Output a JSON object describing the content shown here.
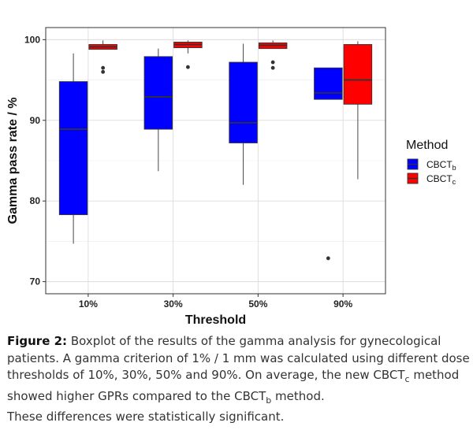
{
  "chart_data": {
    "type": "boxplot",
    "xlabel": "Threshold",
    "ylabel": "Gamma pass rate / %",
    "categories": [
      "10%",
      "30%",
      "50%",
      "90%"
    ],
    "ylim": [
      68.5,
      101.5
    ],
    "yticks": [
      70,
      80,
      90,
      100
    ],
    "grid": true,
    "legend": {
      "title": "Method",
      "position": "right",
      "entries": [
        {
          "base": "CBCT",
          "sub": "b",
          "color": "#0000ff"
        },
        {
          "base": "CBCT",
          "sub": "c",
          "color": "#ff0000"
        }
      ]
    },
    "series": [
      {
        "name": "CBCTb",
        "color": "#0000ff",
        "boxes": [
          {
            "category": "10%",
            "min": 74.7,
            "q1": 78.3,
            "median": 88.9,
            "q3": 94.8,
            "max": 98.3,
            "outliers": []
          },
          {
            "category": "30%",
            "min": 83.7,
            "q1": 88.9,
            "median": 92.9,
            "q3": 97.9,
            "max": 98.9,
            "outliers": []
          },
          {
            "category": "50%",
            "min": 82.0,
            "q1": 87.2,
            "median": 89.7,
            "q3": 97.2,
            "max": 99.5,
            "outliers": []
          },
          {
            "category": "90%",
            "min": 92.6,
            "q1": 92.6,
            "median": 93.4,
            "q3": 96.5,
            "max": 96.5,
            "outliers": [
              72.9
            ]
          }
        ]
      },
      {
        "name": "CBCTc",
        "color": "#ff0000",
        "boxes": [
          {
            "category": "10%",
            "min": 98.8,
            "q1": 98.8,
            "median": 99.1,
            "q3": 99.4,
            "max": 99.9,
            "outliers": [
              96.5,
              96.0
            ]
          },
          {
            "category": "30%",
            "min": 98.3,
            "q1": 99.0,
            "median": 99.4,
            "q3": 99.7,
            "max": 99.9,
            "outliers": [
              96.6
            ]
          },
          {
            "category": "50%",
            "min": 98.9,
            "q1": 98.9,
            "median": 99.3,
            "q3": 99.6,
            "max": 99.9,
            "outliers": [
              97.2,
              96.5
            ]
          },
          {
            "category": "90%",
            "min": 82.7,
            "q1": 92.0,
            "median": 95.0,
            "q3": 99.4,
            "max": 99.8,
            "outliers": []
          }
        ]
      }
    ]
  },
  "caption": {
    "label": "Figure 2:",
    "text_1": " Boxplot of the results of the gamma analysis for gynecological patients. A gamma criterion of 1% / 1 mm was calculated using different dose thresholds of 10%, 30%, 50% and 90%. On average, the new CBCT",
    "sub_1": "c",
    "text_2": " method showed higher GPRs compared to the CBCT",
    "sub_2": "b",
    "text_3": " method.",
    "text_4": "These differences were statistically significant."
  }
}
